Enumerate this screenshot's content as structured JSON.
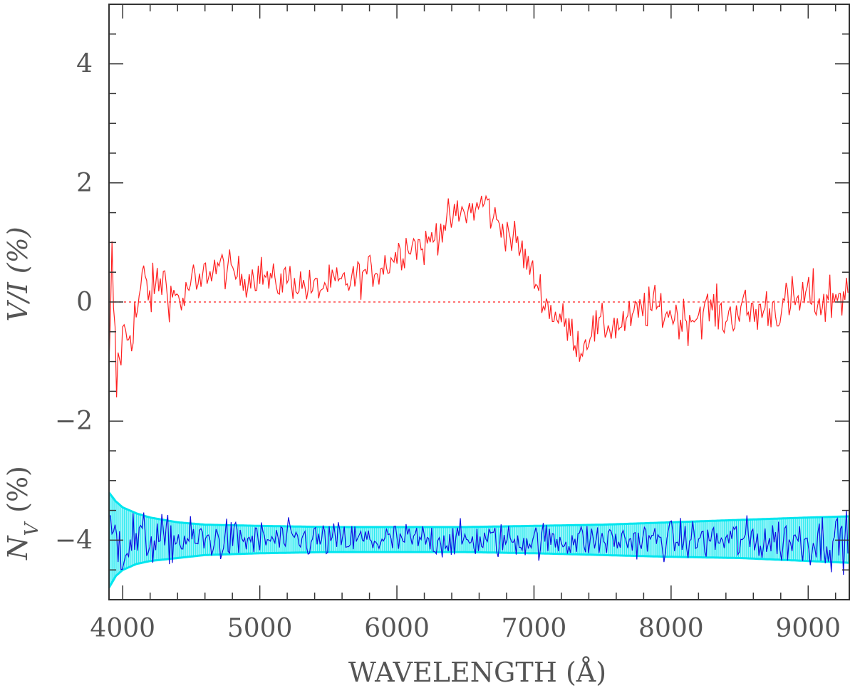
{
  "chart_data": {
    "type": "line",
    "title": "",
    "xlabel": "WAVELENGTH (Å)",
    "ylabel_upper": "V/I (%)",
    "ylabel_lower_main": "N",
    "ylabel_lower_sub": "V",
    "ylabel_lower_unit": "(%)",
    "xlim": [
      3900,
      9300
    ],
    "ylim": [
      -5,
      5
    ],
    "x_ticks": [
      4000,
      5000,
      6000,
      7000,
      8000,
      9000
    ],
    "x_tick_labels": [
      "4000",
      "5000",
      "6000",
      "7000",
      "8000",
      "9000"
    ],
    "y_ticks": [
      -4,
      -2,
      0,
      2,
      4
    ],
    "y_tick_labels": [
      "−4",
      "−2",
      "0",
      "2",
      "4"
    ],
    "grid": false,
    "colors": {
      "vi_series": "#ff2020",
      "zero_line": "#ff2020",
      "null_series": "#1010e0",
      "error_band": "#00e5ee",
      "axes": "#333333",
      "text": "#555555"
    },
    "series": [
      {
        "key": "vi",
        "style": "line",
        "x": [
          3900,
          3925,
          3950,
          3975,
          4000,
          4050,
          4100,
          4150,
          4200,
          4250,
          4300,
          4350,
          4400,
          4450,
          4500,
          4550,
          4600,
          4700,
          4800,
          4900,
          5000,
          5100,
          5200,
          5300,
          5400,
          5500,
          5600,
          5700,
          5800,
          5900,
          6000,
          6100,
          6200,
          6300,
          6400,
          6500,
          6600,
          6650,
          6700,
          6800,
          6900,
          7000,
          7050,
          7100,
          7200,
          7300,
          7350,
          7400,
          7500,
          7600,
          7700,
          7800,
          7900,
          8000,
          8100,
          8200,
          8300,
          8400,
          8500,
          8600,
          8700,
          8800,
          8900,
          9000,
          9100,
          9200,
          9300
        ],
        "y": [
          -1.5,
          0.8,
          -1.5,
          -0.9,
          -0.6,
          -0.5,
          -0.2,
          0.4,
          0.1,
          0.3,
          0.4,
          0.1,
          0.1,
          0.0,
          0.4,
          0.2,
          0.5,
          0.6,
          0.5,
          0.4,
          0.5,
          0.3,
          0.4,
          0.3,
          0.2,
          0.3,
          0.3,
          0.4,
          0.5,
          0.6,
          0.8,
          1.0,
          0.9,
          1.2,
          1.4,
          1.5,
          1.6,
          1.7,
          1.4,
          1.2,
          0.9,
          0.4,
          0.2,
          -0.1,
          -0.3,
          -0.6,
          -0.8,
          -0.5,
          -0.4,
          -0.4,
          -0.3,
          -0.1,
          -0.1,
          -0.2,
          -0.3,
          -0.2,
          -0.1,
          -0.3,
          -0.1,
          -0.2,
          -0.1,
          -0.1,
          0.0,
          0.1,
          0.0,
          0.1,
          0.2
        ],
        "noise_amp": [
          0.8,
          0.9,
          0.8,
          0.6,
          0.5,
          0.5,
          0.45,
          0.45,
          0.4,
          0.4,
          0.4,
          0.35,
          0.35,
          0.35,
          0.35,
          0.3,
          0.3,
          0.3,
          0.3,
          0.3,
          0.3,
          0.3,
          0.3,
          0.3,
          0.3,
          0.3,
          0.3,
          0.3,
          0.3,
          0.3,
          0.3,
          0.3,
          0.3,
          0.3,
          0.3,
          0.3,
          0.3,
          0.3,
          0.3,
          0.3,
          0.3,
          0.3,
          0.3,
          0.3,
          0.3,
          0.3,
          0.3,
          0.3,
          0.3,
          0.3,
          0.3,
          0.35,
          0.35,
          0.35,
          0.35,
          0.35,
          0.35,
          0.35,
          0.35,
          0.4,
          0.4,
          0.4,
          0.4,
          0.4,
          0.45,
          0.45,
          0.5
        ]
      },
      {
        "key": "null",
        "style": "line",
        "offset": -4,
        "x": [
          3900,
          4000,
          4200,
          4500,
          5000,
          6000,
          7000,
          8000,
          8500,
          9000,
          9300
        ],
        "y": [
          -4.0,
          -4.0,
          -4.0,
          -4.0,
          -4.0,
          -4.0,
          -4.0,
          -4.0,
          -4.0,
          -4.0,
          -4.0
        ],
        "noise_amp": [
          0.7,
          0.6,
          0.4,
          0.35,
          0.3,
          0.28,
          0.28,
          0.3,
          0.35,
          0.4,
          0.45
        ]
      },
      {
        "key": "error_band",
        "style": "band",
        "x": [
          3900,
          3950,
          4000,
          4100,
          4200,
          4400,
          4600,
          5000,
          5500,
          6000,
          6500,
          7000,
          7500,
          8000,
          8500,
          9000,
          9300
        ],
        "lower": [
          -4.8,
          -4.6,
          -4.5,
          -4.4,
          -4.35,
          -4.3,
          -4.25,
          -4.22,
          -4.2,
          -4.2,
          -4.2,
          -4.22,
          -4.25,
          -4.28,
          -4.3,
          -4.35,
          -4.38
        ],
        "upper": [
          -3.2,
          -3.35,
          -3.45,
          -3.55,
          -3.62,
          -3.7,
          -3.74,
          -3.76,
          -3.78,
          -3.78,
          -3.78,
          -3.76,
          -3.74,
          -3.7,
          -3.66,
          -3.62,
          -3.6
        ]
      }
    ],
    "zero_line": {
      "y": 0,
      "style": "dotted"
    }
  }
}
